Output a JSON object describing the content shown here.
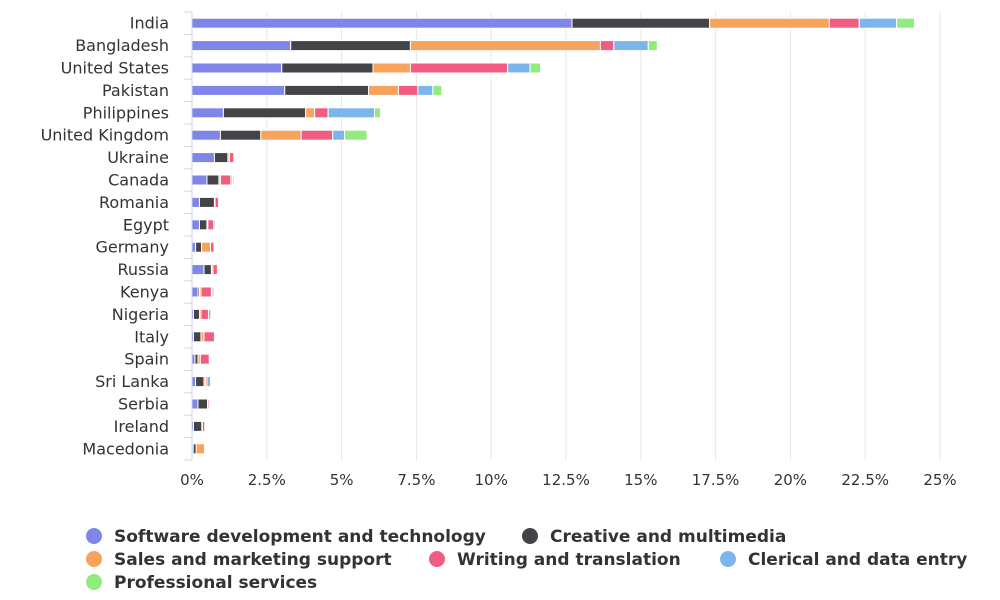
{
  "chart_data": {
    "type": "bar",
    "orientation": "horizontal",
    "stacked": true,
    "title": "",
    "xlabel": "",
    "ylabel": "",
    "xlim": [
      0,
      25
    ],
    "x_unit": "%",
    "x_ticks": [
      "0%",
      "2.5%",
      "5%",
      "7.5%",
      "10%",
      "12.5%",
      "15%",
      "17.5%",
      "20%",
      "22.5%",
      "25%"
    ],
    "x_tick_values": [
      0,
      2.5,
      5,
      7.5,
      10,
      12.5,
      15,
      17.5,
      20,
      22.5,
      25
    ],
    "grid": "vertical",
    "legend_position": "bottom",
    "categories": [
      "India",
      "Bangladesh",
      "United States",
      "Pakistan",
      "Philippines",
      "United Kingdom",
      "Ukraine",
      "Canada",
      "Romania",
      "Egypt",
      "Germany",
      "Russia",
      "Kenya",
      "Nigeria",
      "Italy",
      "Spain",
      "Sri Lanka",
      "Serbia",
      "Ireland",
      "Macedonia"
    ],
    "series": [
      {
        "name": "Software development and technology",
        "color": "#8085e9",
        "values": [
          12.7,
          3.3,
          3.0,
          3.1,
          1.05,
          0.95,
          0.75,
          0.5,
          0.25,
          0.25,
          0.12,
          0.4,
          0.2,
          0.05,
          0.05,
          0.1,
          0.12,
          0.2,
          0.05,
          0.04
        ]
      },
      {
        "name": "Creative and multimedia",
        "color": "#434348",
        "values": [
          4.6,
          4.0,
          3.05,
          2.8,
          2.75,
          1.35,
          0.45,
          0.4,
          0.5,
          0.25,
          0.2,
          0.25,
          0.05,
          0.2,
          0.25,
          0.1,
          0.28,
          0.32,
          0.28,
          0.1
        ]
      },
      {
        "name": "Sales and marketing support",
        "color": "#f7a35c",
        "values": [
          4.0,
          6.35,
          1.25,
          1.0,
          0.3,
          1.35,
          0.05,
          0.05,
          0.02,
          0.03,
          0.3,
          0.05,
          0.05,
          0.05,
          0.1,
          0.08,
          0.05,
          0.02,
          0.02,
          0.28
        ]
      },
      {
        "name": "Writing and translation",
        "color": "#f15c80",
        "values": [
          1.0,
          0.45,
          3.25,
          0.65,
          0.45,
          1.05,
          0.15,
          0.35,
          0.12,
          0.2,
          0.12,
          0.15,
          0.35,
          0.25,
          0.35,
          0.3,
          0.05,
          0.05,
          0.08,
          0.0
        ]
      },
      {
        "name": "Clerical and data entry",
        "color": "#7cb5ec",
        "values": [
          1.25,
          1.15,
          0.75,
          0.5,
          1.55,
          0.4,
          0.0,
          0.05,
          0.02,
          0.05,
          0.03,
          0.03,
          0.05,
          0.08,
          0.02,
          0.02,
          0.12,
          0.03,
          0.02,
          0.0
        ]
      },
      {
        "name": "Professional services",
        "color": "#90ed7d",
        "values": [
          0.6,
          0.3,
          0.35,
          0.3,
          0.2,
          0.75,
          0.02,
          0.05,
          0.02,
          0.02,
          0.02,
          0.02,
          0.05,
          0.02,
          0.02,
          0.02,
          0.02,
          0.02,
          0.02,
          0.0
        ]
      }
    ]
  }
}
